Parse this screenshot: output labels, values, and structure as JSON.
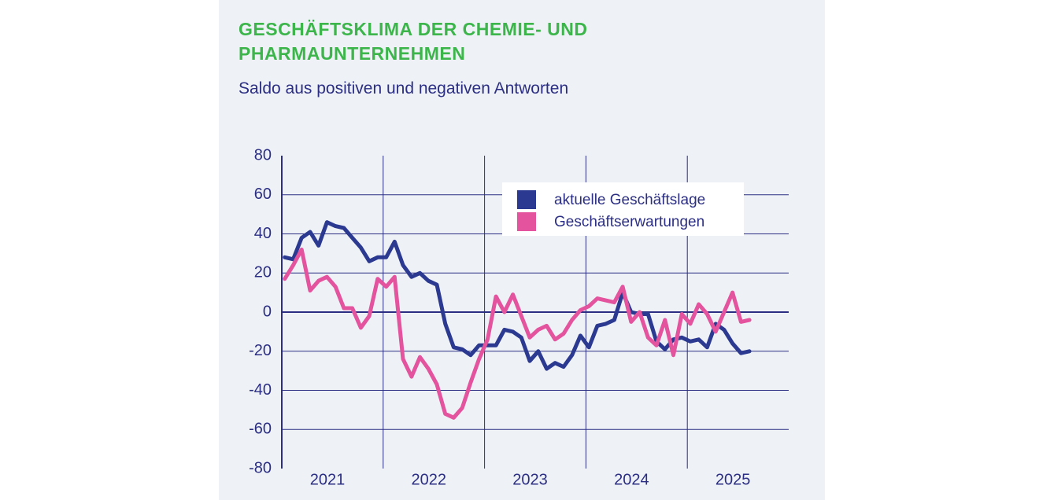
{
  "chart_data": {
    "type": "line",
    "title": "GESCHÄFTSKLIMA DER CHEMIE- UND PHARMAUNTERNEHMEN",
    "subtitle": "Saldo aus positiven und negativen Antworten",
    "x_labels": [
      "2021",
      "2022",
      "2023",
      "2024",
      "2025"
    ],
    "ylim": [
      -80,
      80
    ],
    "yticks": [
      -80,
      -60,
      -40,
      -20,
      0,
      20,
      40,
      60,
      80
    ],
    "grid": true,
    "legend": "top-right",
    "series": [
      {
        "name": "aktuelle Geschäftslage",
        "color": "#2b3990",
        "values": [
          28,
          27,
          38,
          41,
          34,
          46,
          44,
          43,
          38,
          33,
          26,
          28,
          28,
          36,
          24,
          18,
          20,
          16,
          14,
          -6,
          -18,
          -19,
          -22,
          -17,
          -17,
          -17,
          -9,
          -10,
          -13,
          -25,
          -20,
          -29,
          -26,
          -28,
          -22,
          -12,
          -18,
          -7,
          -6,
          -4,
          10,
          0,
          -1,
          -1,
          -15,
          -19,
          -14,
          -13,
          -15,
          -14,
          -18,
          -6,
          -9,
          -16,
          -21,
          -20
        ]
      },
      {
        "name": "Geschäftserwartungen",
        "color": "#e4539e",
        "values": [
          17,
          24,
          32,
          11,
          16,
          18,
          13,
          2,
          2,
          -8,
          -2,
          17,
          13,
          18,
          -24,
          -33,
          -23,
          -29,
          -37,
          -52,
          -54,
          -49,
          -36,
          -24,
          -14,
          8,
          0,
          9,
          -2,
          -13,
          -9,
          -7,
          -14,
          -11,
          -4,
          1,
          3,
          7,
          6,
          5,
          13,
          -5,
          0,
          -13,
          -17,
          -4,
          -22,
          -1,
          -6,
          4,
          -1,
          -10,
          0,
          10,
          -5,
          -4
        ]
      }
    ]
  }
}
